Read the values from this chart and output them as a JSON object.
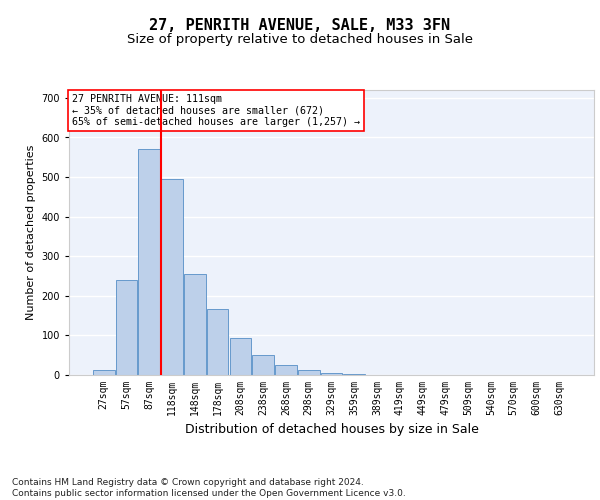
{
  "title": "27, PENRITH AVENUE, SALE, M33 3FN",
  "subtitle": "Size of property relative to detached houses in Sale",
  "xlabel": "Distribution of detached houses by size in Sale",
  "ylabel": "Number of detached properties",
  "bar_labels": [
    "27sqm",
    "57sqm",
    "87sqm",
    "118sqm",
    "148sqm",
    "178sqm",
    "208sqm",
    "238sqm",
    "268sqm",
    "298sqm",
    "329sqm",
    "359sqm",
    "389sqm",
    "419sqm",
    "449sqm",
    "479sqm",
    "509sqm",
    "540sqm",
    "570sqm",
    "600sqm",
    "630sqm"
  ],
  "bar_values": [
    13,
    240,
    570,
    495,
    255,
    168,
    93,
    50,
    26,
    13,
    5,
    2,
    1,
    1,
    1,
    0,
    0,
    0,
    0,
    0,
    0
  ],
  "bar_color": "#bdd0ea",
  "bar_edge_color": "#6699cc",
  "background_color": "#edf2fb",
  "grid_color": "#ffffff",
  "vline_x": 2.5,
  "vline_color": "red",
  "annotation_text": "27 PENRITH AVENUE: 111sqm\n← 35% of detached houses are smaller (672)\n65% of semi-detached houses are larger (1,257) →",
  "annotation_box_color": "white",
  "annotation_box_edge": "red",
  "ylim": [
    0,
    720
  ],
  "yticks": [
    0,
    100,
    200,
    300,
    400,
    500,
    600,
    700
  ],
  "footer": "Contains HM Land Registry data © Crown copyright and database right 2024.\nContains public sector information licensed under the Open Government Licence v3.0.",
  "title_fontsize": 11,
  "subtitle_fontsize": 9.5,
  "xlabel_fontsize": 9,
  "ylabel_fontsize": 8,
  "tick_fontsize": 7,
  "footer_fontsize": 6.5
}
